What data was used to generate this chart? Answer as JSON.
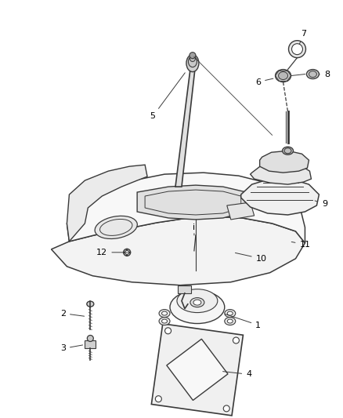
{
  "bg_color": "#ffffff",
  "line_color": "#3a3a3a",
  "fig_width": 4.38,
  "fig_height": 5.33,
  "dpi": 100
}
